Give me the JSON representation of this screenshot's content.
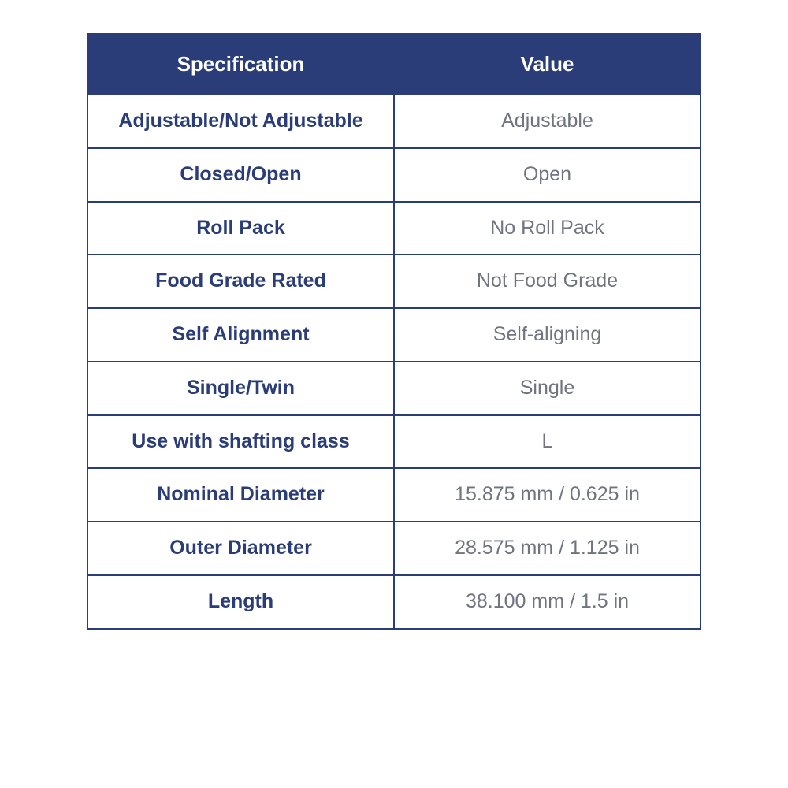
{
  "table": {
    "type": "table",
    "header_bg": "#2a3d78",
    "header_text_color": "#ffffff",
    "border_color": "#2a3d78",
    "row_label_color": "#2a3d78",
    "value_text_color": "#6f7480",
    "cell_bg": "#ffffff",
    "header_fontsize": 26,
    "cell_fontsize": 25,
    "columns": [
      "Specification",
      "Value"
    ],
    "rows": [
      {
        "spec": "Adjustable/Not Adjustable",
        "value": "Adjustable"
      },
      {
        "spec": "Closed/Open",
        "value": "Open"
      },
      {
        "spec": "Roll Pack",
        "value": "No Roll Pack"
      },
      {
        "spec": "Food Grade Rated",
        "value": "Not Food Grade"
      },
      {
        "spec": "Self Alignment",
        "value": "Self-aligning"
      },
      {
        "spec": "Single/Twin",
        "value": "Single"
      },
      {
        "spec": "Use with shafting class",
        "value": "L"
      },
      {
        "spec": "Nominal Diameter",
        "value": "15.875 mm / 0.625 in"
      },
      {
        "spec": "Outer Diameter",
        "value": "28.575 mm / 1.125 in"
      },
      {
        "spec": "Length",
        "value": "38.100 mm / 1.5 in"
      }
    ]
  }
}
